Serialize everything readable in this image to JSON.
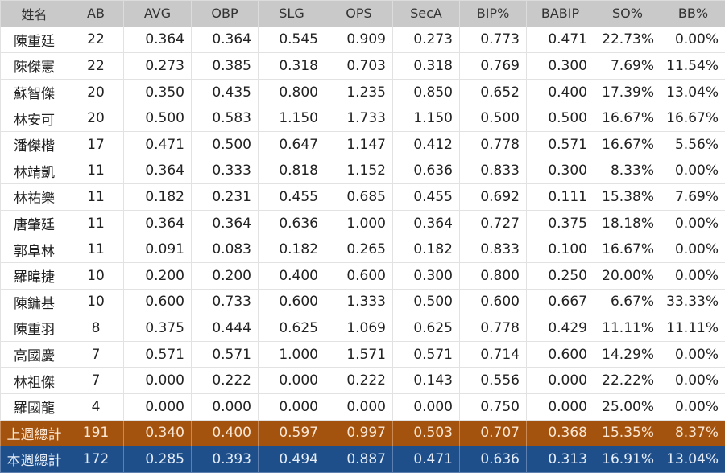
{
  "columns": [
    "姓名",
    "AB",
    "AVG",
    "OBP",
    "SLG",
    "OPS",
    "SecA",
    "BIP%",
    "BABIP",
    "SO%",
    "BB%"
  ],
  "rows": [
    [
      "陳重廷",
      "22",
      "0.364",
      "0.364",
      "0.545",
      "0.909",
      "0.273",
      "0.773",
      "0.471",
      "22.73%",
      "0.00%"
    ],
    [
      "陳傑憲",
      "22",
      "0.273",
      "0.385",
      "0.318",
      "0.703",
      "0.318",
      "0.769",
      "0.300",
      "7.69%",
      "11.54%"
    ],
    [
      "蘇智傑",
      "20",
      "0.350",
      "0.435",
      "0.800",
      "1.235",
      "0.850",
      "0.652",
      "0.400",
      "17.39%",
      "13.04%"
    ],
    [
      "林安可",
      "20",
      "0.500",
      "0.583",
      "1.150",
      "1.733",
      "1.150",
      "0.500",
      "0.500",
      "16.67%",
      "16.67%"
    ],
    [
      "潘傑楷",
      "17",
      "0.471",
      "0.500",
      "0.647",
      "1.147",
      "0.412",
      "0.778",
      "0.571",
      "16.67%",
      "5.56%"
    ],
    [
      "林靖凱",
      "11",
      "0.364",
      "0.333",
      "0.818",
      "1.152",
      "0.636",
      "0.833",
      "0.300",
      "8.33%",
      "0.00%"
    ],
    [
      "林祐樂",
      "11",
      "0.182",
      "0.231",
      "0.455",
      "0.685",
      "0.455",
      "0.692",
      "0.111",
      "15.38%",
      "7.69%"
    ],
    [
      "唐肇廷",
      "11",
      "0.364",
      "0.364",
      "0.636",
      "1.000",
      "0.364",
      "0.727",
      "0.375",
      "18.18%",
      "0.00%"
    ],
    [
      "郭阜林",
      "11",
      "0.091",
      "0.083",
      "0.182",
      "0.265",
      "0.182",
      "0.833",
      "0.100",
      "16.67%",
      "0.00%"
    ],
    [
      "羅暐捷",
      "10",
      "0.200",
      "0.200",
      "0.400",
      "0.600",
      "0.300",
      "0.800",
      "0.250",
      "20.00%",
      "0.00%"
    ],
    [
      "陳鏞基",
      "10",
      "0.600",
      "0.733",
      "0.600",
      "1.333",
      "0.500",
      "0.600",
      "0.667",
      "6.67%",
      "33.33%"
    ],
    [
      "陳重羽",
      "8",
      "0.375",
      "0.444",
      "0.625",
      "1.069",
      "0.625",
      "0.778",
      "0.429",
      "11.11%",
      "11.11%"
    ],
    [
      "高國慶",
      "7",
      "0.571",
      "0.571",
      "1.000",
      "1.571",
      "0.571",
      "0.714",
      "0.600",
      "14.29%",
      "0.00%"
    ],
    [
      "林祖傑",
      "7",
      "0.000",
      "0.222",
      "0.000",
      "0.222",
      "0.143",
      "0.556",
      "0.000",
      "22.22%",
      "0.00%"
    ],
    [
      "羅國龍",
      "4",
      "0.000",
      "0.000",
      "0.000",
      "0.000",
      "0.000",
      "0.750",
      "0.000",
      "25.00%",
      "0.00%"
    ]
  ],
  "last_week": [
    "上週總計",
    "191",
    "0.340",
    "0.400",
    "0.597",
    "0.997",
    "0.503",
    "0.707",
    "0.368",
    "15.35%",
    "8.37%"
  ],
  "this_week": [
    "本週總計",
    "172",
    "0.285",
    "0.393",
    "0.494",
    "0.887",
    "0.471",
    "0.636",
    "0.313",
    "16.91%",
    "13.04%"
  ],
  "colors": {
    "header": "#c9c9c9",
    "last_week": "#a4530f",
    "this_week": "#1f4f8b"
  }
}
